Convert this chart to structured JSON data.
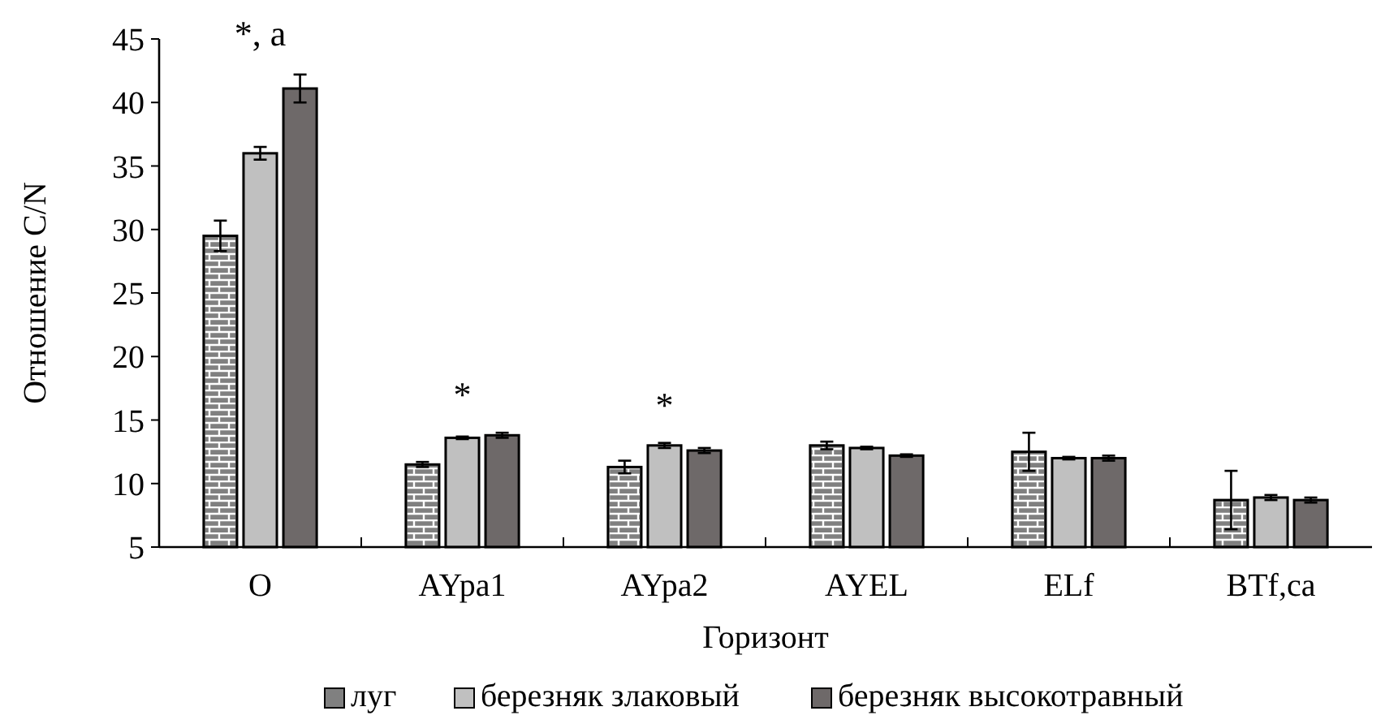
{
  "chart_data": {
    "type": "bar",
    "xlabel": "Горизонт",
    "ylabel": "Отношение C/N",
    "categories": [
      "O",
      "AYpa1",
      "AYpa2",
      "AYEL",
      "ELf",
      "BTf,ca"
    ],
    "series": [
      {
        "name": "луг",
        "color": "#808080",
        "values": [
          29.5,
          11.5,
          11.3,
          13.0,
          12.5,
          8.7
        ],
        "errors": [
          1.2,
          0.2,
          0.5,
          0.3,
          1.5,
          2.3
        ]
      },
      {
        "name": "березняк злаковый",
        "color": "#c0c0c0",
        "values": [
          36.0,
          13.6,
          13.0,
          12.8,
          12.0,
          8.9
        ],
        "errors": [
          0.5,
          0.1,
          0.2,
          0.1,
          0.1,
          0.2
        ]
      },
      {
        "name": "березняк высокотравный",
        "color": "#6e6969",
        "values": [
          41.1,
          13.8,
          12.6,
          12.2,
          12.0,
          8.7
        ],
        "errors": [
          1.1,
          0.2,
          0.2,
          0.1,
          0.2,
          0.2
        ]
      }
    ],
    "ylim": [
      5,
      45
    ],
    "yticks": [
      5,
      10,
      15,
      20,
      25,
      30,
      35,
      40,
      45
    ],
    "grid": false,
    "legend": "bottom",
    "annotations": [
      "*, a",
      "*",
      "*"
    ]
  }
}
